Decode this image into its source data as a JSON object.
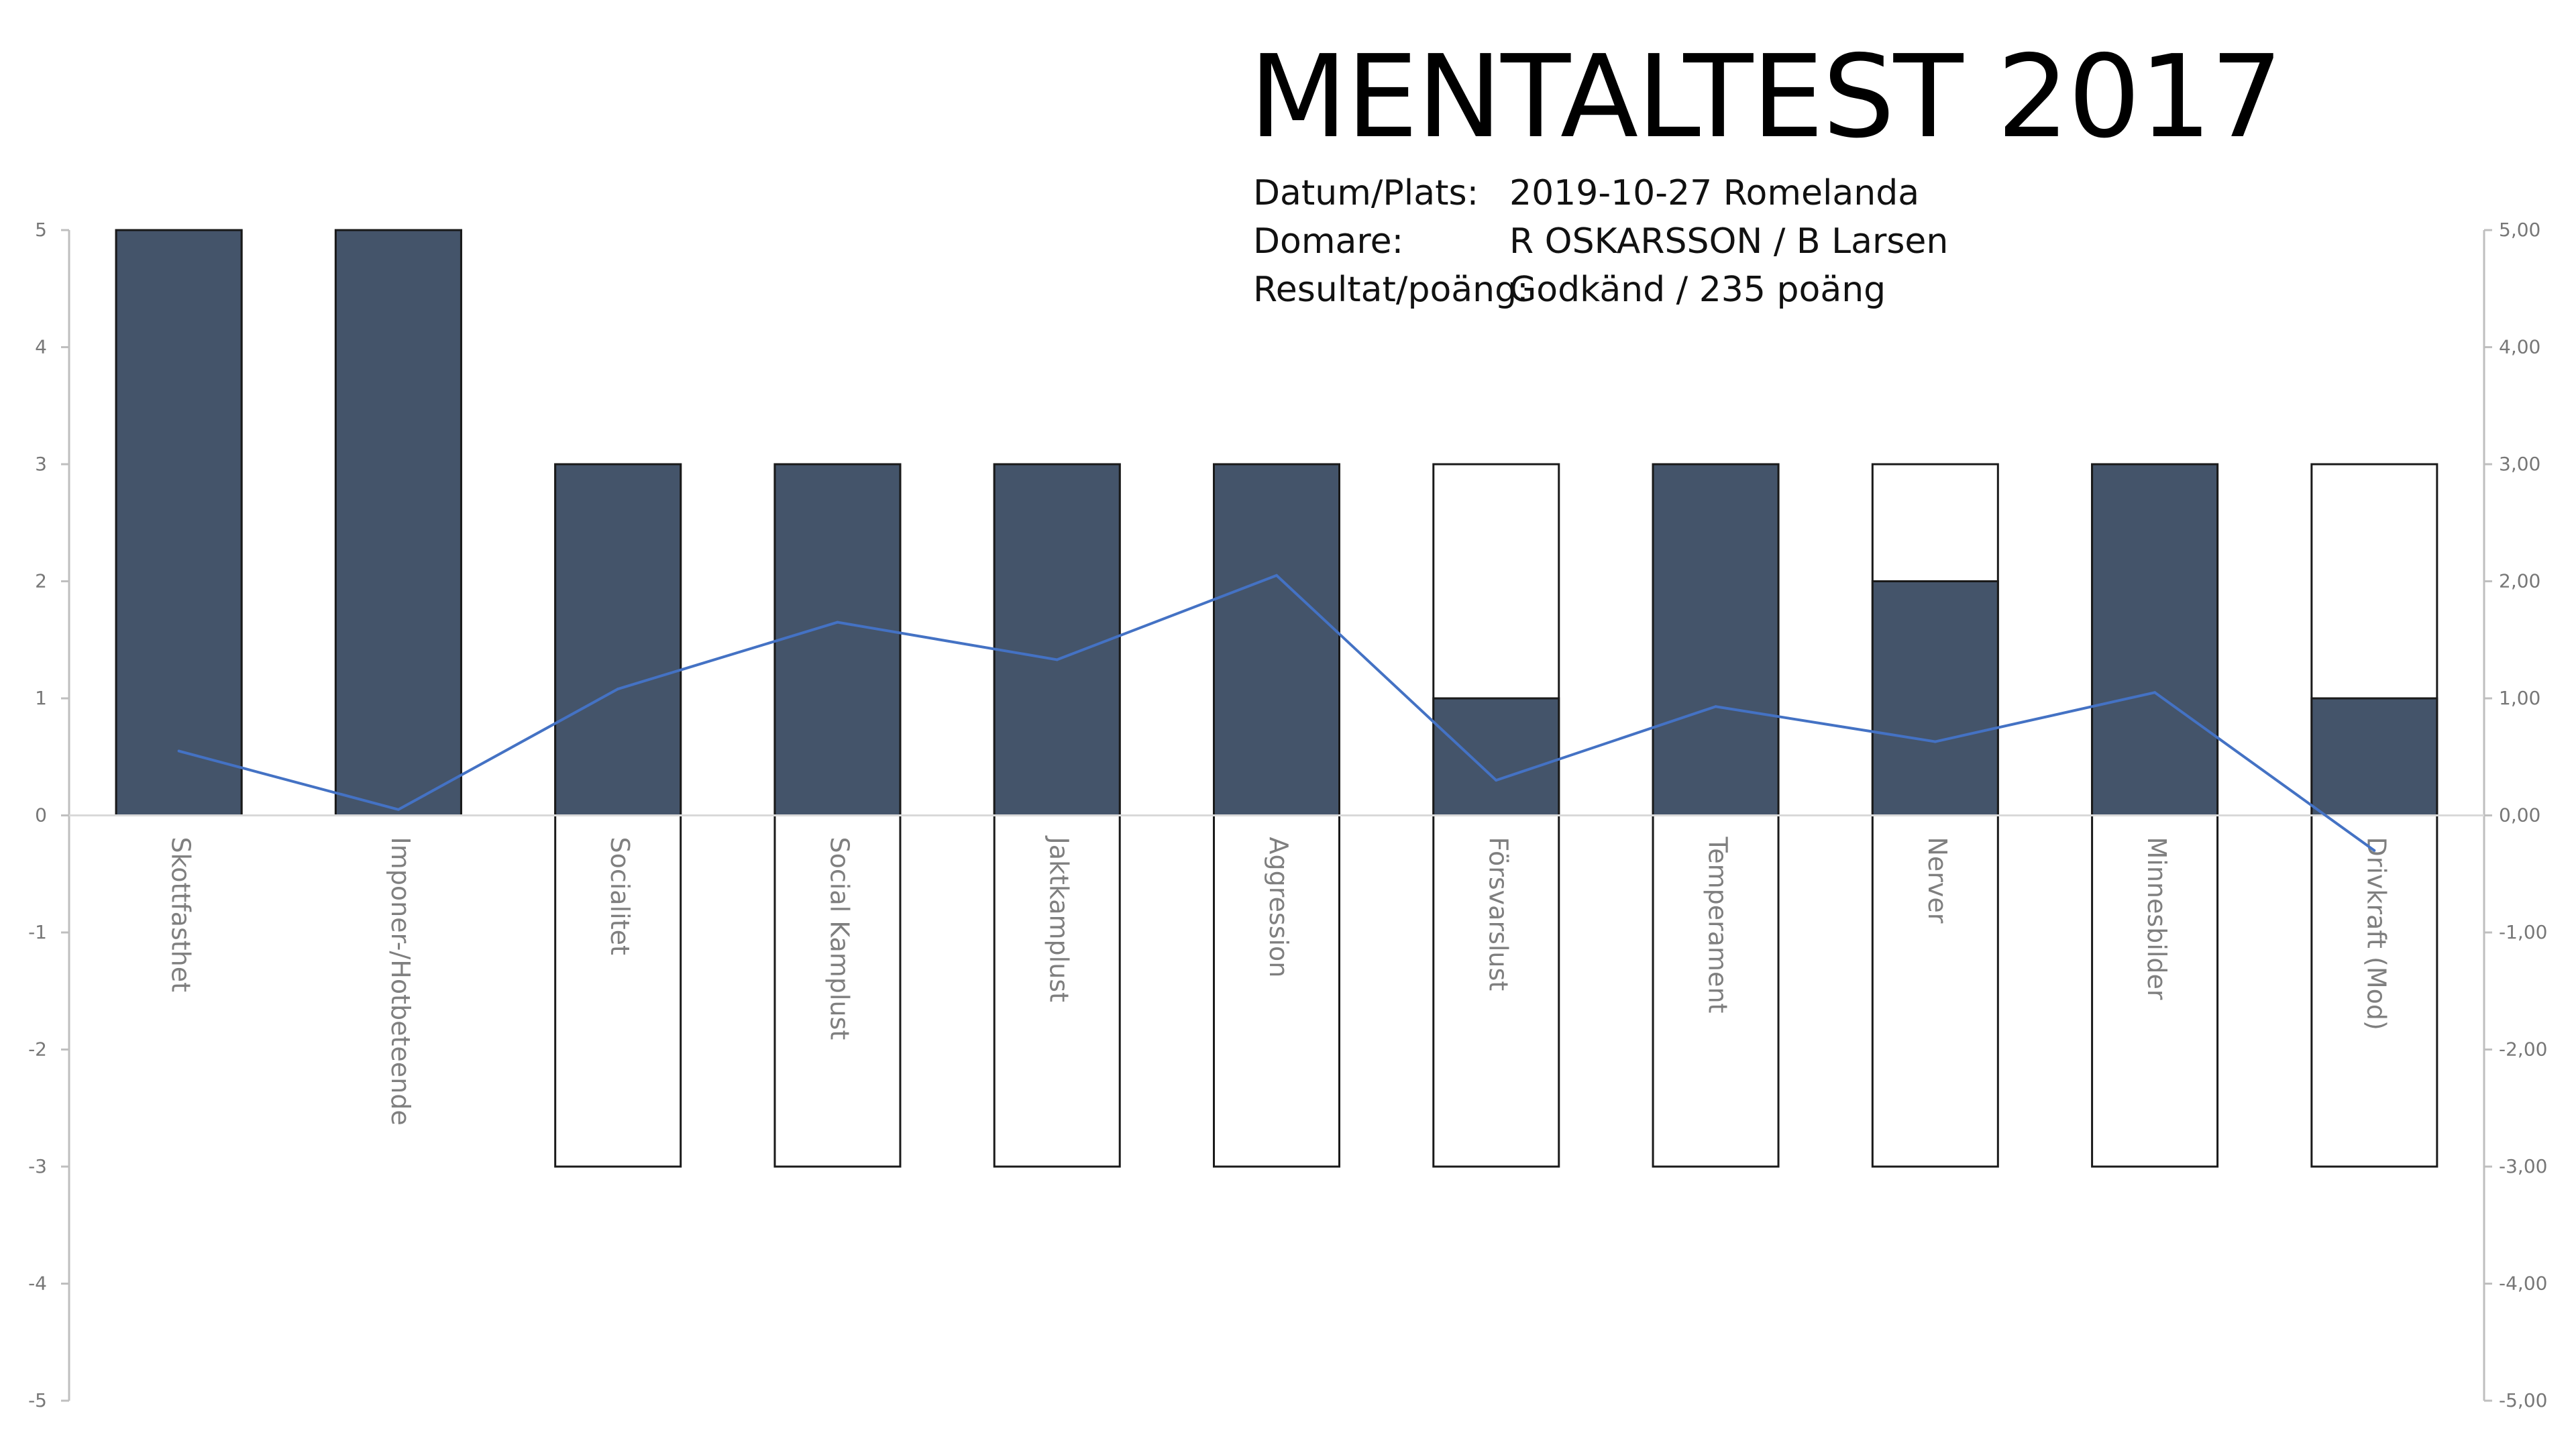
{
  "header": {
    "title": "MENTALTEST 2017",
    "rows": [
      {
        "label": "Datum/Plats:",
        "value": "2019-10-27 Romelanda"
      },
      {
        "label": "Domare:",
        "value": "R OSKARSSON / B Larsen"
      },
      {
        "label": "Resultat/poäng:",
        "value": "Godkänd / 235 poäng"
      }
    ]
  },
  "chart_data": {
    "type": "bar",
    "categories": [
      "Skottfasthet",
      "Imponer-/Hotbeteende",
      "Socialitet",
      "Social Kamplust",
      "Jaktkamplust",
      "Aggression",
      "Försvarslust",
      "Temperament",
      "Nerver",
      "Minnesbilder",
      "Drivkraft (Mod)"
    ],
    "range_top": [
      5,
      5,
      3,
      3,
      3,
      3,
      3,
      3,
      3,
      3,
      3
    ],
    "range_bottom": [
      0,
      0,
      -3,
      -3,
      -3,
      -3,
      -3,
      -3,
      -3,
      -3,
      -3
    ],
    "series": [
      {
        "type": "bar",
        "axis": "left",
        "values": [
          5,
          5,
          3,
          3,
          3,
          3,
          1,
          3,
          2,
          3,
          1
        ]
      },
      {
        "type": "line",
        "axis": "right",
        "values": [
          0.55,
          0.05,
          1.08,
          1.65,
          1.33,
          2.05,
          0.3,
          0.93,
          0.63,
          1.05,
          -0.3
        ]
      }
    ],
    "y_left": {
      "min": -5,
      "max": 5,
      "ticks": [
        "5",
        "4",
        "3",
        "2",
        "1",
        "0",
        "-1",
        "-2",
        "-3",
        "-4",
        "-5"
      ]
    },
    "y_right": {
      "min": -5,
      "max": 5,
      "ticks": [
        "5,00",
        "4,00",
        "3,00",
        "2,00",
        "1,00",
        "0,00",
        "-1,00",
        "-2,00",
        "-3,00",
        "-4,00",
        "-5,00"
      ]
    },
    "colors": {
      "bar_fill": "#44546A",
      "bar_outline": "#1a1a1a",
      "line": "#4472C4",
      "axis": "#bfbfbf",
      "tick_label": "#777777",
      "category_label": "#7f7f7f"
    },
    "grid": false,
    "legend": "none"
  }
}
